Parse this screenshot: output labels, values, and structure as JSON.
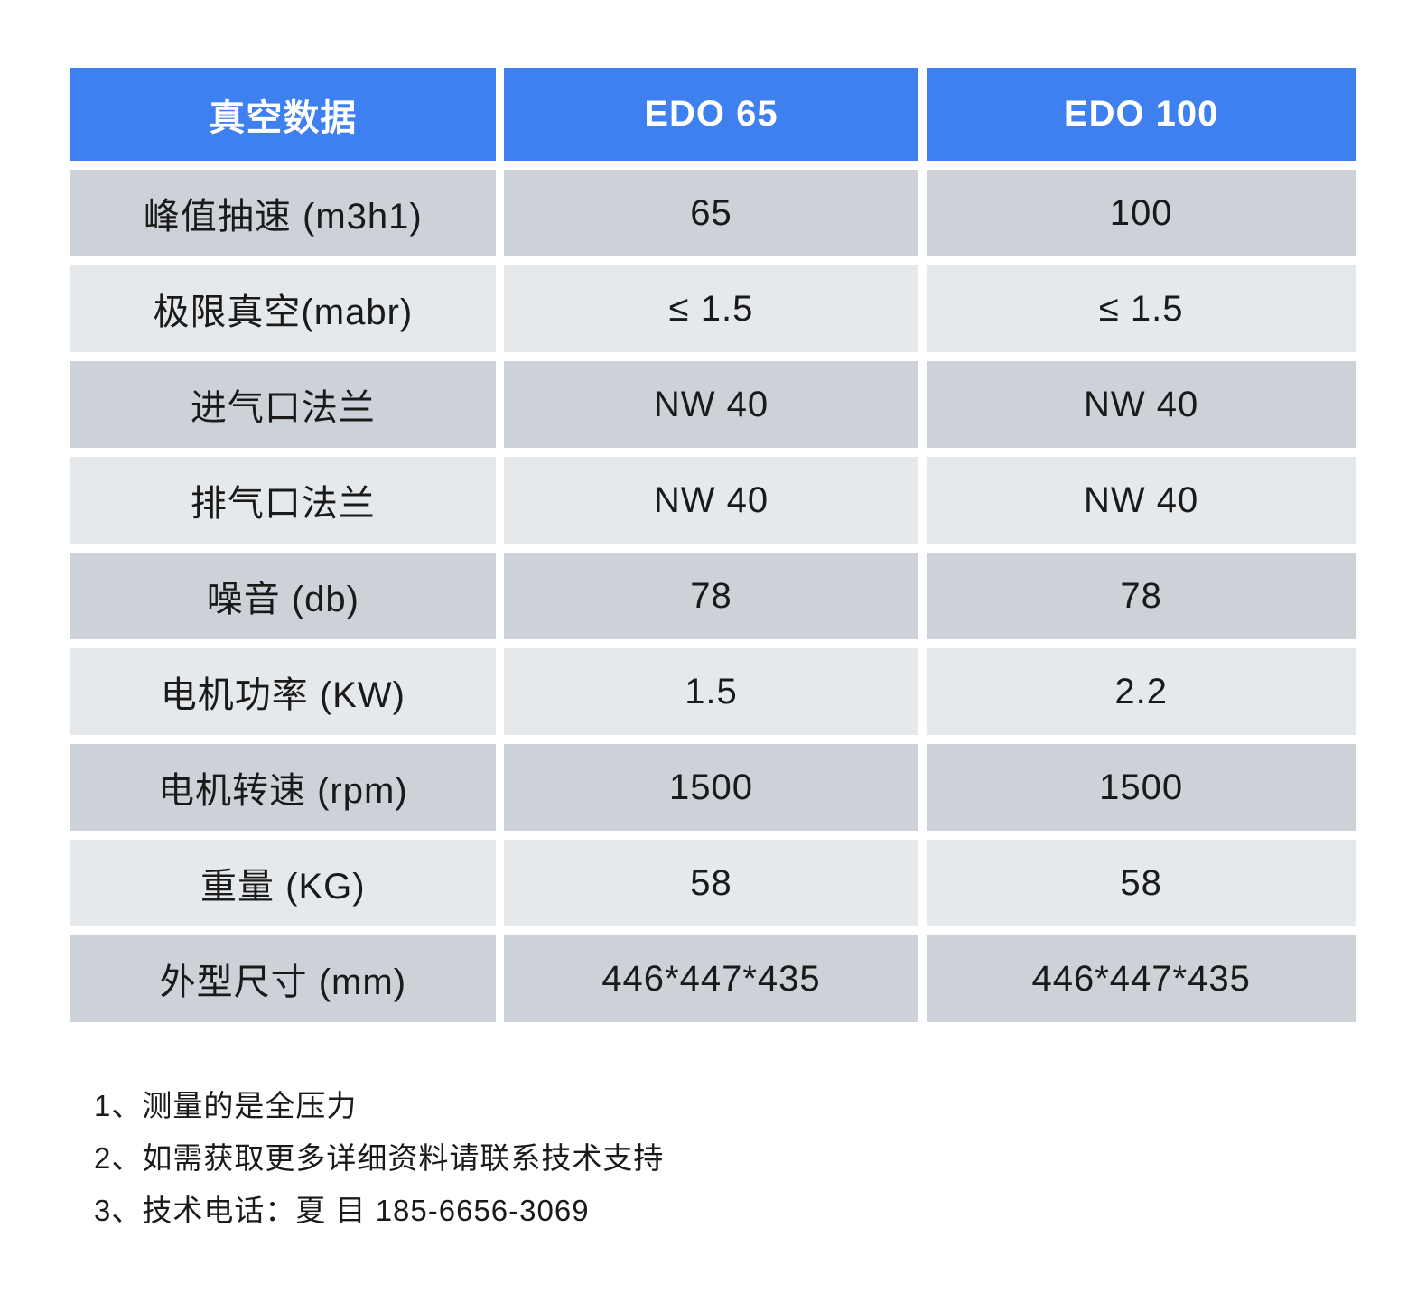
{
  "table": {
    "header": {
      "specs": "真空数据",
      "edo65": "EDO 65",
      "edo100": "EDO 100"
    },
    "rows": [
      {
        "label": "峰值抽速 (m3h1)",
        "edo65": "65",
        "edo100": "100"
      },
      {
        "label": "极限真空(mabr)",
        "edo65": "≤ 1.5",
        "edo100": "≤ 1.5"
      },
      {
        "label": "进气口法兰",
        "edo65": "NW 40",
        "edo100": "NW 40"
      },
      {
        "label": "排气口法兰",
        "edo65": "NW 40",
        "edo100": "NW 40"
      },
      {
        "label": "噪音 (db)",
        "edo65": "78",
        "edo100": "78"
      },
      {
        "label": "电机功率 (KW)",
        "edo65": "1.5",
        "edo100": "2.2"
      },
      {
        "label": "电机转速 (rpm)",
        "edo65": "1500",
        "edo100": "1500"
      },
      {
        "label": "重量 (KG)",
        "edo65": "58",
        "edo100": "58"
      },
      {
        "label": "外型尺寸 (mm)",
        "edo65": "446*447*435",
        "edo100": "446*447*435"
      }
    ]
  },
  "notes": [
    "1、测量的是全压力",
    "2、如需获取更多详细资料请联系技术支持",
    "3、技术电话：夏 目 185-6656-3069"
  ],
  "colors": {
    "accent": "#3E80EF",
    "row_dark": "#CDD1D8",
    "row_light": "#E6E9EC",
    "text": "#1A1A1A",
    "header_text": "#FFFFFF",
    "page_bg": "#FFFFFF"
  }
}
